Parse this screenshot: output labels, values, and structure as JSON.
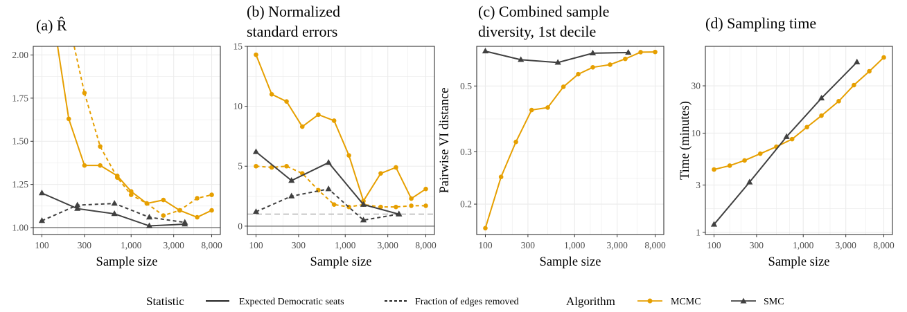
{
  "colors": {
    "mcmc": "#E69F00",
    "smc": "#404040",
    "grid": "#EBEBEB",
    "panel_border": "#333333",
    "ref_line": "#7F7F7F",
    "ref_dashed": "#B3B3B3"
  },
  "legend": {
    "statistic_title": "Statistic",
    "statistic_items": [
      "Expected Democratic seats",
      "Fraction of edges removed"
    ],
    "algorithm_title": "Algorithm",
    "algorithm_items": [
      "MCMC",
      "SMC"
    ]
  },
  "chart_data": [
    {
      "panel": "a",
      "type": "line",
      "title": [
        "(a) R̂"
      ],
      "xlabel": "Sample size",
      "ylabel": "",
      "xscale": "log",
      "xlim": [
        80,
        10000
      ],
      "xticks": [
        100,
        300,
        1000,
        3000,
        8000
      ],
      "xtick_labels": [
        "100",
        "300",
        "1,000",
        "3,000",
        "8,000"
      ],
      "ylim": [
        0.96,
        2.05
      ],
      "yticks": [
        1.0,
        1.25,
        1.5,
        1.75,
        2.0
      ],
      "ytick_labels": [
        "1.00",
        "1.25",
        "1.50",
        "1.75",
        "2.00"
      ],
      "reference_lines": [
        {
          "y": 1.0,
          "style": "solid"
        }
      ],
      "series": [
        {
          "algorithm": "MCMC",
          "statistic": "Expected Democratic seats",
          "line": "solid",
          "x": [
            200,
            300,
            450,
            700,
            1000,
            1500,
            2300,
            3500,
            5500,
            8000
          ],
          "y": [
            1.63,
            1.36,
            1.36,
            1.3,
            1.21,
            1.14,
            1.16,
            1.1,
            1.06,
            1.1
          ]
        },
        {
          "algorithm": "MCMC",
          "statistic": "Fraction of edges removed",
          "line": "dashed",
          "x": [
            300,
            450,
            700,
            1000,
            1500,
            2300,
            3500,
            5500,
            8000
          ],
          "y": [
            1.78,
            1.47,
            1.29,
            1.19,
            1.14,
            1.07,
            1.1,
            1.17,
            1.19
          ]
        },
        {
          "algorithm": "SMC",
          "statistic": "Expected Democratic seats",
          "line": "solid",
          "x": [
            100,
            250,
            650,
            1600,
            4000
          ],
          "y": [
            1.2,
            1.11,
            1.08,
            1.01,
            1.02
          ]
        },
        {
          "algorithm": "SMC",
          "statistic": "Fraction of edges removed",
          "line": "dashed",
          "x": [
            100,
            250,
            650,
            1600,
            4000
          ],
          "y": [
            1.04,
            1.13,
            1.14,
            1.06,
            1.03
          ]
        }
      ],
      "extra_curves": [
        {
          "algorithm": "MCMC",
          "line": "solid",
          "x": [
            150,
            200
          ],
          "y": [
            2.05,
            1.63
          ]
        },
        {
          "algorithm": "MCMC",
          "line": "dashed",
          "x": [
            230,
            300
          ],
          "y": [
            2.05,
            1.78
          ]
        }
      ]
    },
    {
      "panel": "b",
      "type": "line",
      "title": [
        "(b) Normalized",
        "standard errors"
      ],
      "xlabel": "Sample size",
      "ylabel": "",
      "xscale": "log",
      "xlim": [
        80,
        10000
      ],
      "xticks": [
        100,
        300,
        1000,
        3000,
        8000
      ],
      "xtick_labels": [
        "100",
        "300",
        "1,000",
        "3,000",
        "8,000"
      ],
      "ylim": [
        -0.7,
        15
      ],
      "yticks": [
        0,
        5,
        10,
        15
      ],
      "ytick_labels": [
        "0",
        "5",
        "10",
        "15"
      ],
      "reference_lines": [
        {
          "y": 0,
          "style": "solid"
        },
        {
          "y": 1,
          "style": "dashed"
        }
      ],
      "series": [
        {
          "algorithm": "MCMC",
          "statistic": "Expected Democratic seats",
          "line": "solid",
          "x": [
            100,
            150,
            220,
            330,
            500,
            750,
            1100,
            1600,
            2500,
            3700,
            5500,
            8000
          ],
          "y": [
            14.3,
            11.0,
            10.4,
            8.3,
            9.3,
            8.8,
            5.9,
            2.1,
            4.4,
            4.9,
            2.3,
            3.1
          ]
        },
        {
          "algorithm": "MCMC",
          "statistic": "Fraction of edges removed",
          "line": "dashed",
          "x": [
            100,
            150,
            220,
            330,
            500,
            750,
            1100,
            1600,
            2500,
            3700,
            5500,
            8000
          ],
          "y": [
            5.0,
            4.9,
            5.0,
            4.4,
            3.0,
            1.8,
            1.6,
            1.8,
            1.6,
            1.6,
            1.7,
            1.7
          ]
        },
        {
          "algorithm": "SMC",
          "statistic": "Expected Democratic seats",
          "line": "solid",
          "x": [
            100,
            250,
            650,
            1600,
            4000
          ],
          "y": [
            6.2,
            3.8,
            5.3,
            1.8,
            1.0
          ]
        },
        {
          "algorithm": "SMC",
          "statistic": "Fraction of edges removed",
          "line": "dashed",
          "x": [
            100,
            250,
            650,
            1600,
            4000
          ],
          "y": [
            1.2,
            2.5,
            3.1,
            0.5,
            1.0
          ]
        }
      ],
      "extra_curves": []
    },
    {
      "panel": "c",
      "type": "line",
      "title": [
        "(c) Combined sample",
        "diversity, 1st decile"
      ],
      "xlabel": "Sample size",
      "ylabel": "Pairwise VI distance",
      "xscale": "log",
      "xlim": [
        80,
        10000
      ],
      "xticks": [
        100,
        300,
        1000,
        3000,
        8000
      ],
      "xtick_labels": [
        "100",
        "300",
        "1,000",
        "3,000",
        "8,000"
      ],
      "yscale": "log",
      "ylim": [
        0.158,
        0.68
      ],
      "yticks": [
        0.2,
        0.3,
        0.5
      ],
      "ytick_labels": [
        "0.2",
        "0.3",
        "0.5"
      ],
      "reference_lines": [],
      "series": [
        {
          "algorithm": "MCMC",
          "statistic": "Expected Democratic seats",
          "line": "solid",
          "x": [
            100,
            150,
            220,
            330,
            500,
            750,
            1100,
            1600,
            2500,
            3700,
            5500,
            8000
          ],
          "y": [
            0.166,
            0.247,
            0.324,
            0.415,
            0.423,
            0.497,
            0.548,
            0.578,
            0.59,
            0.617,
            0.65,
            0.651
          ]
        },
        {
          "algorithm": "SMC",
          "statistic": "Expected Democratic seats",
          "line": "solid",
          "x": [
            100,
            250,
            650,
            1600,
            4000
          ],
          "y": [
            0.655,
            0.613,
            0.6,
            0.645,
            0.648
          ]
        }
      ],
      "extra_curves": []
    },
    {
      "panel": "d",
      "type": "line",
      "title": [
        "(d) Sampling time"
      ],
      "xlabel": "Sample size",
      "ylabel": "Time (minutes)",
      "xscale": "log",
      "xlim": [
        80,
        10000
      ],
      "xticks": [
        100,
        300,
        1000,
        3000,
        8000
      ],
      "xtick_labels": [
        "100",
        "300",
        "1,000",
        "3,000",
        "8,000"
      ],
      "yscale": "log",
      "ylim": [
        0.95,
        75
      ],
      "yticks": [
        1,
        3,
        10,
        30
      ],
      "ytick_labels": [
        "1",
        "3",
        "10",
        "30"
      ],
      "reference_lines": [],
      "series": [
        {
          "algorithm": "MCMC",
          "statistic": "Expected Democratic seats",
          "line": "solid",
          "x": [
            100,
            150,
            220,
            330,
            500,
            750,
            1100,
            1600,
            2500,
            3700,
            5500,
            8000
          ],
          "y": [
            4.3,
            4.7,
            5.3,
            6.2,
            7.3,
            8.7,
            11.5,
            15.0,
            21.0,
            30.5,
            42.0,
            58.0
          ]
        },
        {
          "algorithm": "SMC",
          "statistic": "Expected Democratic seats",
          "line": "solid",
          "x": [
            100,
            250,
            650,
            1600,
            4000
          ],
          "y": [
            1.2,
            3.2,
            9.2,
            22.5,
            52.0
          ]
        }
      ],
      "extra_curves": []
    }
  ]
}
